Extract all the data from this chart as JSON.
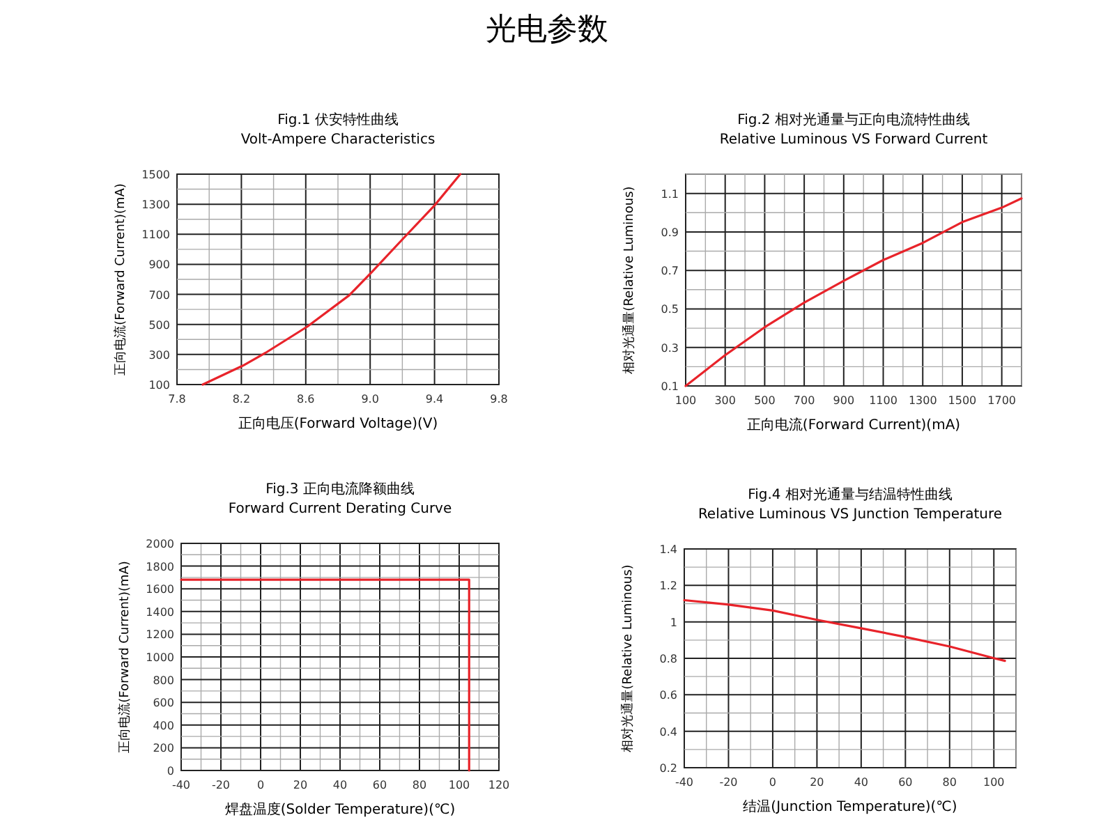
{
  "chart_data": [
    {
      "type": "other",
      "title": "光电参数"
    },
    {
      "type": "line",
      "title": "Fig.1 伏安特性曲线",
      "subtitle": "Volt-Ampere Characteristics",
      "xlabel": "正向电压(Forward Voltage)(V)",
      "ylabel": "正向电流(Forward Current)(mA)",
      "color": "#e8232a",
      "grid": true,
      "xlim": [
        7.8,
        9.8
      ],
      "ylim": [
        100,
        1500
      ],
      "xticks": [
        7.8,
        {
          "value": 8.0,
          "label": null
        },
        8.2,
        {
          "value": 8.4,
          "label": null
        },
        8.6,
        {
          "value": 8.8,
          "label": null
        },
        {
          "value": 9,
          "label": "9.0"
        },
        {
          "value": 9.2,
          "label": null
        },
        9.4,
        {
          "value": 9.6,
          "label": null
        },
        9.8
      ],
      "yticks": [
        100,
        {
          "value": 200,
          "label": null
        },
        300,
        {
          "value": 400,
          "label": null
        },
        500,
        {
          "value": 600,
          "label": null
        },
        700,
        {
          "value": 800,
          "label": null
        },
        900,
        {
          "value": 1000,
          "label": null
        },
        1100,
        {
          "value": 1200,
          "label": null
        },
        1300,
        {
          "value": 1400,
          "label": null
        },
        1500
      ],
      "x": [
        7.96,
        8.21,
        8.35,
        8.61,
        8.87,
        9.01,
        9.21,
        9.4,
        9.56
      ],
      "values": [
        100,
        226,
        311,
        486,
        694,
        848,
        1077,
        1292,
        1500
      ]
    },
    {
      "type": "line",
      "title": "Fig.2 相对光通量与正向电流特性曲线",
      "subtitle": "Relative Luminous VS Forward Current",
      "xlabel": "正向电流(Forward Current)(mA)",
      "ylabel": "相对光通量(Relative Luminous)",
      "color": "#e8232a",
      "grid": true,
      "xlim": [
        100,
        1800
      ],
      "ylim": [
        0.1,
        1.2
      ],
      "xticks": [
        100,
        {
          "value": 200,
          "label": null
        },
        300,
        {
          "value": 400,
          "label": null
        },
        500,
        {
          "value": 600,
          "label": null
        },
        700,
        {
          "value": 800,
          "label": null
        },
        900,
        {
          "value": 1000,
          "label": null
        },
        1100,
        {
          "value": 1200,
          "label": null
        },
        1300,
        {
          "value": 1400,
          "label": null
        },
        1500,
        {
          "value": 1600,
          "label": null
        },
        1700,
        {
          "value": 1800,
          "label": null
        }
      ],
      "yticks": [
        0.1,
        {
          "value": 0.2,
          "label": null
        },
        0.3,
        {
          "value": 0.4,
          "label": null
        },
        0.5,
        {
          "value": 0.6,
          "label": null
        },
        0.7,
        {
          "value": 0.8,
          "label": null
        },
        0.9,
        {
          "value": 1.0,
          "label": null
        },
        1.1,
        {
          "value": 1.2,
          "label": null
        }
      ],
      "x": [
        100,
        300,
        500,
        700,
        900,
        1100,
        1300,
        1500,
        1700,
        1800
      ],
      "values": [
        0.1,
        0.26,
        0.405,
        0.533,
        0.646,
        0.754,
        0.843,
        0.951,
        1.026,
        1.074
      ]
    },
    {
      "type": "line",
      "title": "Fig.3 正向电流降额曲线",
      "subtitle": "Forward Current Derating Curve",
      "xlabel": "焊盘温度(Solder Temperature)(℃)",
      "ylabel": "正向电流(Forward Current)(mA)",
      "color": "#e8232a",
      "grid": true,
      "xlim": [
        -40,
        120
      ],
      "ylim": [
        0,
        2000
      ],
      "xticks": [
        -40,
        {
          "value": -30,
          "label": null
        },
        -20,
        {
          "value": -10,
          "label": null
        },
        0,
        {
          "value": 10,
          "label": null
        },
        20,
        {
          "value": 30,
          "label": null
        },
        40,
        {
          "value": 50,
          "label": null
        },
        60,
        {
          "value": 70,
          "label": null
        },
        80,
        {
          "value": 90,
          "label": null
        },
        100,
        {
          "value": 110,
          "label": null
        },
        120
      ],
      "yticks": [
        0,
        {
          "value": 100,
          "label": null
        },
        200,
        {
          "value": 300,
          "label": null
        },
        400,
        {
          "value": 500,
          "label": null
        },
        600,
        {
          "value": 700,
          "label": null
        },
        800,
        {
          "value": 900,
          "label": null
        },
        1000,
        {
          "value": 1100,
          "label": null
        },
        1200,
        {
          "value": 1300,
          "label": null
        },
        1400,
        {
          "value": 1500,
          "label": null
        },
        1600,
        {
          "value": 1700,
          "label": null
        },
        1800,
        {
          "value": 1900,
          "label": null
        },
        2000
      ],
      "x": [
        -40,
        105,
        105
      ],
      "values": [
        1680,
        1680,
        0
      ]
    },
    {
      "type": "line",
      "title": "Fig.4 相对光通量与结温特性曲线",
      "subtitle": "Relative Luminous VS Junction Temperature",
      "xlabel": "结温(Junction Temperature)(℃)",
      "ylabel": "相对光通量(Relative Luminous)",
      "color": "#e8232a",
      "grid": true,
      "xlim": [
        -40,
        110
      ],
      "ylim": [
        0.2,
        1.4
      ],
      "xticks": [
        -40,
        {
          "value": -30,
          "label": null
        },
        -20,
        {
          "value": -10,
          "label": null
        },
        0,
        {
          "value": 10,
          "label": null
        },
        20,
        {
          "value": 30,
          "label": null
        },
        40,
        {
          "value": 50,
          "label": null
        },
        60,
        {
          "value": 70,
          "label": null
        },
        80,
        {
          "value": 90,
          "label": null
        },
        100,
        {
          "value": 110,
          "label": null
        }
      ],
      "yticks": [
        0.2,
        {
          "value": 0.3,
          "label": null
        },
        0.4,
        {
          "value": 0.5,
          "label": null
        },
        0.6,
        {
          "value": 0.7,
          "label": null
        },
        0.8,
        {
          "value": 0.9,
          "label": null
        },
        1,
        {
          "value": 1.1,
          "label": null
        },
        1.2,
        {
          "value": 1.3,
          "label": null
        },
        1.4
      ],
      "x": [
        -40,
        -20,
        0,
        20,
        40,
        60,
        80,
        100,
        105
      ],
      "values": [
        1.119,
        1.095,
        1.062,
        1.011,
        0.965,
        0.917,
        0.865,
        0.801,
        0.786
      ]
    }
  ]
}
